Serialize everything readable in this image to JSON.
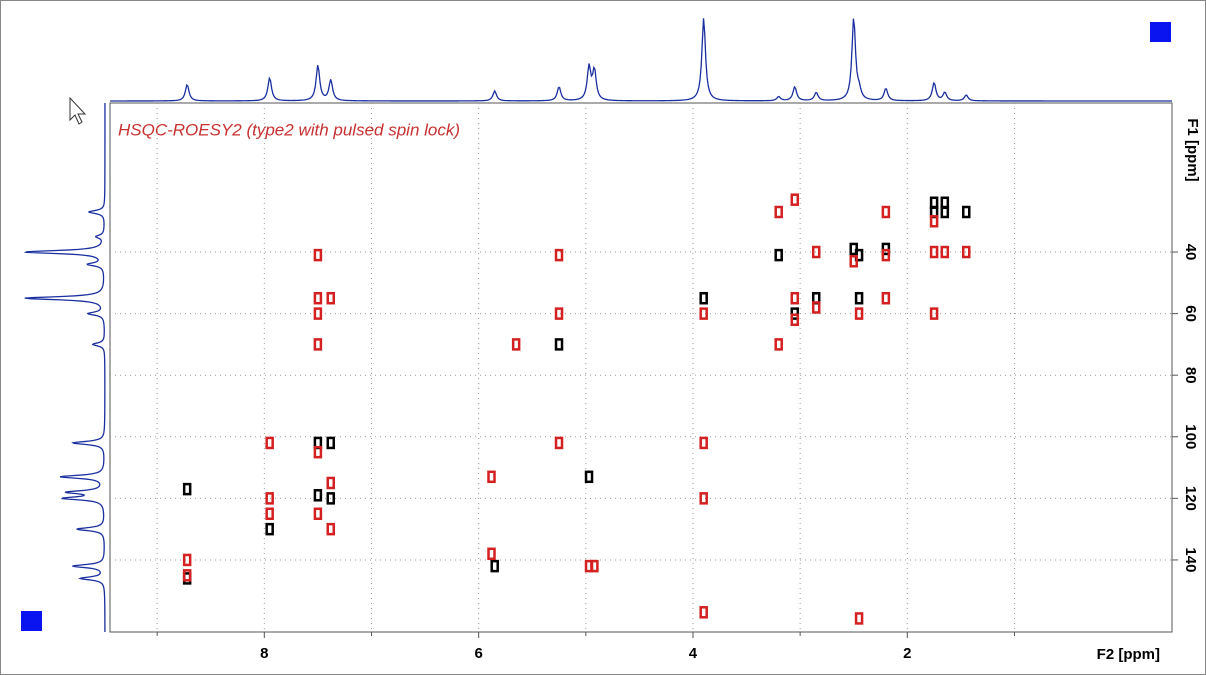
{
  "chart_data": {
    "type": "scatter",
    "annotation": "HSQC-ROESY2 (type2 with pulsed spin lock)",
    "xlabel": "F2 [ppm]",
    "ylabel": "F1 [ppm]",
    "xlim": [
      9.44,
      -0.47
    ],
    "ylim": [
      -8.4,
      163.4
    ],
    "xticks": [
      8,
      6,
      4,
      2
    ],
    "x_minor_ticks": [
      9,
      7,
      5,
      3,
      1
    ],
    "yticks": [
      40,
      60,
      80,
      100,
      120,
      140
    ],
    "grid": true,
    "series": [
      {
        "name": "positive",
        "color": "#000000",
        "x": [
          8.72,
          8.72,
          7.95,
          7.5,
          7.38,
          7.5,
          7.38,
          5.85,
          5.25,
          4.97,
          3.9,
          3.2,
          3.05,
          2.85,
          2.5,
          2.45,
          2.45,
          2.2,
          1.75,
          1.65,
          1.75,
          1.65,
          1.45
        ],
        "y": [
          146,
          117,
          130,
          102,
          102,
          119,
          120,
          142,
          70,
          113,
          55,
          41,
          60,
          55,
          39,
          41,
          55,
          39,
          24,
          24,
          27,
          27,
          27
        ]
      },
      {
        "name": "negative",
        "color": "#d42020",
        "x": [
          8.72,
          8.72,
          7.95,
          7.95,
          7.95,
          7.5,
          7.5,
          7.5,
          7.38,
          7.5,
          7.5,
          7.5,
          7.38,
          7.38,
          5.88,
          5.88,
          5.65,
          5.25,
          5.25,
          5.25,
          4.97,
          4.92,
          3.9,
          3.9,
          3.9,
          3.9,
          3.2,
          3.2,
          3.05,
          3.05,
          3.05,
          2.85,
          2.85,
          2.5,
          2.45,
          2.45,
          2.2,
          2.2,
          2.2,
          1.75,
          1.75,
          1.65,
          1.45,
          1.75
        ],
        "y": [
          140,
          145,
          102,
          120,
          125,
          41,
          55,
          60,
          55,
          70,
          105,
          125,
          115,
          130,
          113,
          138,
          70,
          41,
          102,
          60,
          142,
          142,
          60,
          102,
          120,
          157,
          27,
          70,
          23,
          55,
          62,
          40,
          58,
          43,
          60,
          159,
          27,
          41,
          55,
          40,
          60,
          40,
          40,
          30
        ]
      }
    ],
    "f2_projection": {
      "color": "#1a2fa0",
      "ppm": [
        8.72,
        7.95,
        7.5,
        7.38,
        5.85,
        5.25,
        4.97,
        4.92,
        3.9,
        3.2,
        3.05,
        2.85,
        2.5,
        2.45,
        2.2,
        1.75,
        1.65,
        1.45
      ],
      "height": [
        0.2,
        0.28,
        0.43,
        0.25,
        0.12,
        0.17,
        0.4,
        0.36,
        1.0,
        0.05,
        0.17,
        0.1,
        1.0,
        0.1,
        0.15,
        0.22,
        0.1,
        0.07
      ]
    },
    "f1_projection": {
      "color": "#1a2fa0",
      "ppm": [
        27,
        35,
        40,
        44,
        55,
        60,
        70,
        102,
        113,
        118,
        120,
        130,
        142,
        146
      ],
      "height": [
        0.2,
        0.1,
        1.0,
        0.2,
        1.0,
        0.2,
        0.15,
        0.4,
        0.55,
        0.45,
        0.5,
        0.35,
        0.4,
        0.3
      ]
    }
  }
}
